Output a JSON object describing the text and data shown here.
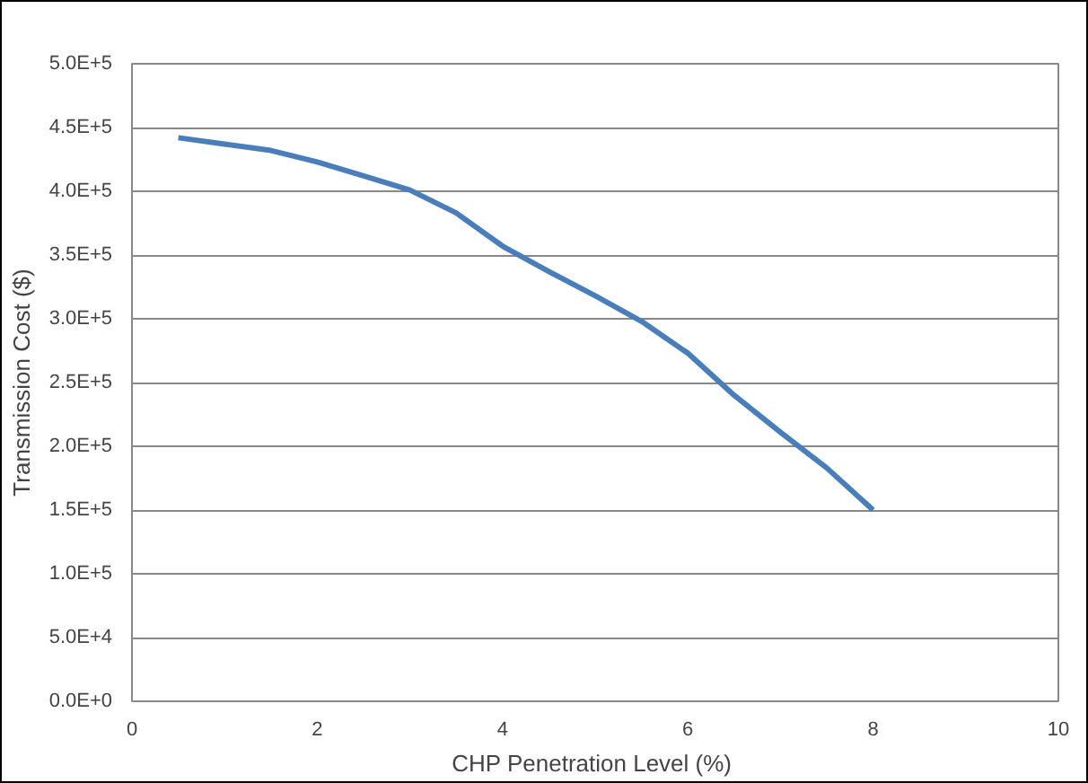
{
  "chart_data": {
    "type": "line",
    "xlabel": "CHP Penetration Level  (%)",
    "ylabel": "Transmission Cost ($)",
    "x": [
      0.5,
      1,
      1.5,
      2,
      2.5,
      3,
      3.5,
      4,
      4.5,
      5,
      5.5,
      6,
      6.5,
      7,
      7.5,
      8
    ],
    "series": [
      {
        "color": "#4a7ebb",
        "values": [
          442000,
          437000,
          432000,
          423000,
          412000,
          401000,
          383000,
          357000,
          337000,
          318000,
          298000,
          273000,
          240000,
          211000,
          183000,
          150000
        ]
      }
    ],
    "xlim": [
      0,
      10
    ],
    "xticks": [
      0,
      2,
      4,
      6,
      8,
      10
    ],
    "ylim": [
      0,
      500000
    ],
    "yticks": [
      {
        "value": 0,
        "label": "0.0E+0"
      },
      {
        "value": 50000,
        "label": "5.0E+4"
      },
      {
        "value": 100000,
        "label": "1.0E+5"
      },
      {
        "value": 150000,
        "label": "1.5E+5"
      },
      {
        "value": 200000,
        "label": "2.0E+5"
      },
      {
        "value": 250000,
        "label": "2.5E+5"
      },
      {
        "value": 300000,
        "label": "3.0E+5"
      },
      {
        "value": 350000,
        "label": "3.5E+5"
      },
      {
        "value": 400000,
        "label": "4.0E+5"
      },
      {
        "value": 450000,
        "label": "4.5E+5"
      },
      {
        "value": 500000,
        "label": "5.0E+5"
      }
    ],
    "grid": "y",
    "line_style": "solid"
  }
}
